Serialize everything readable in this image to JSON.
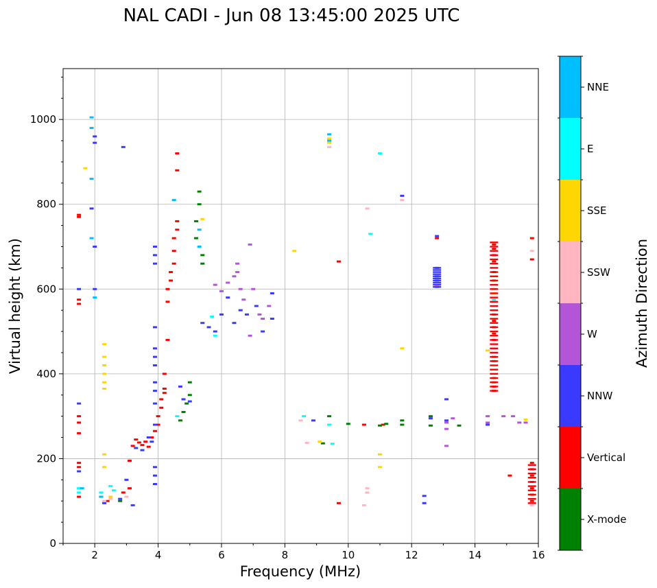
{
  "chart_data": {
    "type": "scatter",
    "title": "NAL CADI - Jun 08 13:45:00 2025 UTC",
    "xlabel": "Frequency (MHz)",
    "ylabel": "Virtual height (km)",
    "xlim": [
      1,
      16
    ],
    "ylim": [
      0,
      1120
    ],
    "xticks": [
      2,
      4,
      6,
      8,
      10,
      12,
      14,
      16
    ],
    "yticks": [
      0,
      200,
      400,
      600,
      800,
      1000
    ],
    "grid": true,
    "colorbar": {
      "label": "Azimuth Direction",
      "categories": [
        {
          "name": "X-mode",
          "color": "#008000"
        },
        {
          "name": "Vertical",
          "color": "#ff0000"
        },
        {
          "name": "NNW",
          "color": "#3a3aff"
        },
        {
          "name": "W",
          "color": "#b455d8"
        },
        {
          "name": "SSW",
          "color": "#ffb6c1"
        },
        {
          "name": "SSE",
          "color": "#ffd700"
        },
        {
          "name": "E",
          "color": "#00ffff"
        },
        {
          "name": "NNE",
          "color": "#00bfff"
        }
      ]
    },
    "series": [
      {
        "name": "Vertical",
        "points": [
          [
            1.5,
            775
          ],
          [
            1.5,
            770
          ],
          [
            1.5,
            575
          ],
          [
            1.5,
            565
          ],
          [
            1.5,
            300
          ],
          [
            1.5,
            285
          ],
          [
            1.5,
            260
          ],
          [
            1.5,
            190
          ],
          [
            1.5,
            180
          ],
          [
            1.5,
            110
          ],
          [
            2.2,
            110
          ],
          [
            2.4,
            100
          ],
          [
            2.9,
            120
          ],
          [
            3.1,
            130
          ],
          [
            3.1,
            195
          ],
          [
            3.2,
            230
          ],
          [
            3.3,
            245
          ],
          [
            3.4,
            238
          ],
          [
            3.5,
            232
          ],
          [
            3.6,
            240
          ],
          [
            3.7,
            228
          ],
          [
            3.8,
            250
          ],
          [
            3.9,
            265
          ],
          [
            4.0,
            280
          ],
          [
            4.0,
            300
          ],
          [
            4.1,
            320
          ],
          [
            4.1,
            340
          ],
          [
            4.2,
            355
          ],
          [
            4.2,
            365
          ],
          [
            4.2,
            400
          ],
          [
            4.3,
            570
          ],
          [
            4.3,
            600
          ],
          [
            4.4,
            620
          ],
          [
            4.4,
            640
          ],
          [
            4.5,
            660
          ],
          [
            4.5,
            690
          ],
          [
            4.5,
            720
          ],
          [
            4.6,
            740
          ],
          [
            4.6,
            760
          ],
          [
            4.6,
            880
          ],
          [
            4.6,
            920
          ],
          [
            4.3,
            480
          ],
          [
            9.7,
            95
          ],
          [
            9.7,
            665
          ],
          [
            10.5,
            280
          ],
          [
            11.1,
            280
          ],
          [
            12.8,
            720
          ],
          [
            12.8,
            605
          ],
          [
            14.6,
            705
          ],
          [
            14.6,
            695
          ],
          [
            14.6,
            680
          ],
          [
            14.6,
            665
          ],
          [
            14.6,
            540
          ],
          [
            14.6,
            525
          ],
          [
            14.6,
            510
          ],
          [
            14.6,
            495
          ],
          [
            14.6,
            480
          ],
          [
            14.6,
            440
          ],
          [
            14.6,
            370
          ],
          [
            14.6,
            360
          ],
          [
            15.1,
            160
          ],
          [
            15.8,
            720
          ],
          [
            15.8,
            670
          ],
          [
            15.8,
            190
          ],
          [
            15.8,
            175
          ],
          [
            15.8,
            160
          ],
          [
            15.8,
            145
          ],
          [
            15.8,
            130
          ],
          [
            15.8,
            115
          ],
          [
            15.8,
            100
          ]
        ]
      },
      {
        "name": "X-mode",
        "points": [
          [
            2.8,
            100
          ],
          [
            4.7,
            290
          ],
          [
            4.8,
            310
          ],
          [
            4.9,
            330
          ],
          [
            5.0,
            350
          ],
          [
            5.0,
            380
          ],
          [
            5.2,
            720
          ],
          [
            5.2,
            760
          ],
          [
            5.3,
            800
          ],
          [
            5.3,
            830
          ],
          [
            5.4,
            680
          ],
          [
            5.4,
            660
          ],
          [
            9.2,
            236
          ],
          [
            9.4,
            300
          ],
          [
            10.0,
            282
          ],
          [
            11.0,
            278
          ],
          [
            11.2,
            282
          ],
          [
            11.7,
            280
          ],
          [
            11.7,
            290
          ],
          [
            12.6,
            278
          ],
          [
            12.6,
            300
          ],
          [
            13.5,
            278
          ],
          [
            14.6,
            380
          ],
          [
            14.6,
            640
          ],
          [
            14.6,
            620
          ],
          [
            14.6,
            430
          ],
          [
            14.6,
            390
          ]
        ]
      },
      {
        "name": "NNW",
        "points": [
          [
            1.5,
            600
          ],
          [
            1.5,
            330
          ],
          [
            1.5,
            170
          ],
          [
            2.0,
            960
          ],
          [
            2.0,
            945
          ],
          [
            2.0,
            700
          ],
          [
            1.9,
            790
          ],
          [
            2.0,
            600
          ],
          [
            2.3,
            95
          ],
          [
            2.8,
            105
          ],
          [
            2.9,
            935
          ],
          [
            3.0,
            150
          ],
          [
            3.2,
            90
          ],
          [
            3.3,
            225
          ],
          [
            3.5,
            220
          ],
          [
            3.7,
            250
          ],
          [
            3.8,
            240
          ],
          [
            3.9,
            280
          ],
          [
            3.9,
            330
          ],
          [
            3.9,
            360
          ],
          [
            3.9,
            380
          ],
          [
            3.9,
            420
          ],
          [
            3.9,
            440
          ],
          [
            3.9,
            460
          ],
          [
            3.9,
            510
          ],
          [
            3.9,
            660
          ],
          [
            3.9,
            680
          ],
          [
            3.9,
            700
          ],
          [
            3.9,
            180
          ],
          [
            3.9,
            160
          ],
          [
            3.9,
            140
          ],
          [
            4.7,
            370
          ],
          [
            4.8,
            340
          ],
          [
            5.0,
            335
          ],
          [
            5.4,
            520
          ],
          [
            5.6,
            510
          ],
          [
            5.8,
            500
          ],
          [
            6.0,
            540
          ],
          [
            6.2,
            580
          ],
          [
            6.4,
            520
          ],
          [
            6.6,
            550
          ],
          [
            6.8,
            540
          ],
          [
            7.1,
            560
          ],
          [
            7.3,
            500
          ],
          [
            7.6,
            530
          ],
          [
            7.6,
            590
          ],
          [
            8.9,
            290
          ],
          [
            12.4,
            112
          ],
          [
            12.4,
            95
          ],
          [
            11.7,
            820
          ],
          [
            12.6,
            295
          ],
          [
            13.1,
            290
          ],
          [
            13.1,
            340
          ],
          [
            12.8,
            650
          ],
          [
            12.8,
            630
          ],
          [
            12.8,
            620
          ],
          [
            12.8,
            725
          ],
          [
            14.4,
            280
          ]
        ]
      },
      {
        "name": "W",
        "points": [
          [
            5.8,
            610
          ],
          [
            6.0,
            595
          ],
          [
            6.2,
            615
          ],
          [
            6.4,
            630
          ],
          [
            6.5,
            660
          ],
          [
            6.5,
            640
          ],
          [
            6.6,
            600
          ],
          [
            6.7,
            575
          ],
          [
            6.9,
            490
          ],
          [
            6.9,
            705
          ],
          [
            7.0,
            600
          ],
          [
            7.2,
            540
          ],
          [
            7.3,
            530
          ],
          [
            7.5,
            560
          ],
          [
            13.1,
            270
          ],
          [
            13.1,
            285
          ],
          [
            13.1,
            230
          ],
          [
            13.3,
            295
          ],
          [
            14.4,
            300
          ],
          [
            14.4,
            285
          ],
          [
            14.9,
            300
          ],
          [
            15.2,
            300
          ],
          [
            15.4,
            285
          ],
          [
            15.6,
            285
          ]
        ]
      },
      {
        "name": "SSW",
        "points": [
          [
            2.3,
            100
          ],
          [
            2.5,
            105
          ],
          [
            3.0,
            110
          ],
          [
            8.5,
            290
          ],
          [
            8.7,
            237
          ],
          [
            9.4,
            935
          ],
          [
            10.6,
            790
          ],
          [
            10.6,
            130
          ],
          [
            10.6,
            120
          ],
          [
            10.5,
            90
          ],
          [
            11.7,
            810
          ],
          [
            15.8,
            690
          ],
          [
            15.8,
            90
          ]
        ]
      },
      {
        "name": "SSE",
        "points": [
          [
            1.7,
            885
          ],
          [
            2.3,
            470
          ],
          [
            2.3,
            440
          ],
          [
            2.3,
            420
          ],
          [
            2.3,
            400
          ],
          [
            2.3,
            380
          ],
          [
            2.3,
            365
          ],
          [
            2.3,
            210
          ],
          [
            2.3,
            180
          ],
          [
            2.5,
            110
          ],
          [
            5.4,
            765
          ],
          [
            8.3,
            690
          ],
          [
            9.4,
            955
          ],
          [
            9.4,
            945
          ],
          [
            9.1,
            240
          ],
          [
            11.0,
            210
          ],
          [
            11.0,
            180
          ],
          [
            11.7,
            460
          ],
          [
            14.4,
            455
          ],
          [
            14.6,
            600
          ],
          [
            14.6,
            590
          ],
          [
            15.6,
            292
          ]
        ]
      },
      {
        "name": "E",
        "points": [
          [
            1.5,
            130
          ],
          [
            1.5,
            120
          ],
          [
            2.2,
            120
          ],
          [
            2.5,
            135
          ],
          [
            2.6,
            125
          ],
          [
            4.6,
            300
          ],
          [
            5.7,
            535
          ],
          [
            5.8,
            490
          ],
          [
            8.6,
            300
          ],
          [
            9.4,
            280
          ],
          [
            9.5,
            235
          ],
          [
            10.7,
            730
          ],
          [
            11.0,
            920
          ],
          [
            14.6,
            575
          ],
          [
            14.6,
            600
          ]
        ]
      },
      {
        "name": "NNE",
        "points": [
          [
            1.6,
            130
          ],
          [
            1.9,
            1005
          ],
          [
            1.9,
            980
          ],
          [
            1.9,
            860
          ],
          [
            1.9,
            720
          ],
          [
            2.0,
            580
          ],
          [
            2.2,
            110
          ],
          [
            4.5,
            810
          ],
          [
            5.3,
            740
          ],
          [
            5.3,
            700
          ],
          [
            9.4,
            965
          ],
          [
            9.4,
            950
          ]
        ]
      }
    ],
    "column_bands": [
      {
        "name": "Vertical",
        "x": 14.6,
        "y_range": [
          360,
          710
        ],
        "step": 10
      },
      {
        "name": "Vertical",
        "x": 15.8,
        "y_range": [
          95,
          190
        ],
        "step": 10
      },
      {
        "name": "NNW",
        "x": 12.8,
        "y_range": [
          605,
          650
        ],
        "step": 5
      }
    ]
  }
}
